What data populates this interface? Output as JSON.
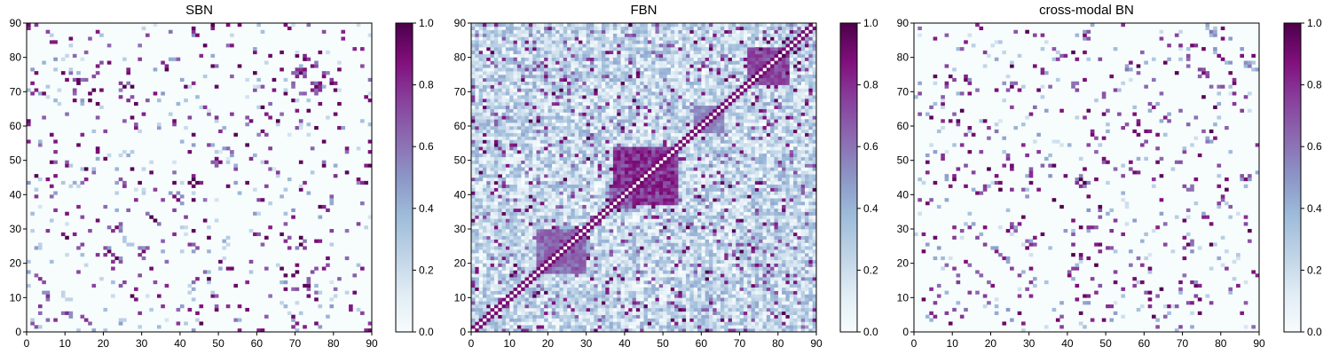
{
  "chart_data": [
    {
      "type": "heatmap",
      "title": "SBN",
      "xlim": [
        0,
        90
      ],
      "ylim": [
        0,
        90
      ],
      "xticks": [
        "0",
        "10",
        "20",
        "30",
        "40",
        "50",
        "60",
        "70",
        "80",
        "90"
      ],
      "yticks": [
        "0",
        "10",
        "20",
        "30",
        "40",
        "50",
        "60",
        "70",
        "80",
        "90"
      ],
      "colorbar": {
        "range": [
          0,
          1
        ],
        "ticks": [
          "0.0",
          "0.2",
          "0.4",
          "0.6",
          "0.8",
          "1.0"
        ]
      },
      "matrix_size": 90,
      "density": "sparse",
      "hotspots": [
        {
          "x": 44.5,
          "y": 43.5,
          "value": 1.0
        },
        {
          "x": 49.5,
          "y": 50.5,
          "value": 0.9
        },
        {
          "x": 25.5,
          "y": 71.5,
          "value": 1.0
        },
        {
          "x": 75.5,
          "y": 71.5,
          "value": 0.95
        },
        {
          "x": 79.5,
          "y": 72.5,
          "value": 0.95
        },
        {
          "x": 13.5,
          "y": 73.5,
          "value": 0.95
        },
        {
          "x": 21.5,
          "y": 23.5,
          "value": 0.9
        },
        {
          "x": 30.5,
          "y": 23.5,
          "value": 0.9
        },
        {
          "x": 74.5,
          "y": 77.5,
          "value": 0.9
        },
        {
          "x": 86.5,
          "y": 44.5,
          "value": 0.9
        },
        {
          "x": 3.5,
          "y": 15.5,
          "value": 0.8
        },
        {
          "x": 10.5,
          "y": 5.5,
          "value": 0.8
        },
        {
          "x": 39.5,
          "y": 38.5,
          "value": 0.9
        },
        {
          "x": 61.5,
          "y": 58.5,
          "value": 0.9
        }
      ]
    },
    {
      "type": "heatmap",
      "title": "FBN",
      "xlim": [
        0,
        90
      ],
      "ylim": [
        0,
        90
      ],
      "xticks": [
        "0",
        "10",
        "20",
        "30",
        "40",
        "50",
        "60",
        "70",
        "80",
        "90"
      ],
      "yticks": [
        "0",
        "10",
        "20",
        "30",
        "40",
        "50",
        "60",
        "70",
        "80",
        "90"
      ],
      "colorbar": {
        "range": [
          0,
          1
        ],
        "ticks": [
          "0.0",
          "0.2",
          "0.4",
          "0.6",
          "0.8",
          "1.0"
        ]
      },
      "matrix_size": 90,
      "density": "dense",
      "blocks": [
        {
          "x0": 42,
          "x1": 54,
          "y0": 37,
          "y1": 53,
          "value": 0.9
        },
        {
          "x0": 36,
          "x1": 43,
          "y0": 36,
          "y1": 43,
          "value": 0.75
        },
        {
          "x0": 72,
          "x1": 83,
          "y0": 72,
          "y1": 83,
          "value": 0.8
        },
        {
          "x0": 17,
          "x1": 30,
          "y0": 17,
          "y1": 29,
          "value": 0.7
        },
        {
          "x0": 58,
          "x1": 66,
          "y0": 58,
          "y1": 66,
          "value": 0.6
        }
      ]
    },
    {
      "type": "heatmap",
      "title": "cross-modal BN",
      "xlim": [
        0,
        90
      ],
      "ylim": [
        0,
        90
      ],
      "xticks": [
        "0",
        "10",
        "20",
        "30",
        "40",
        "50",
        "60",
        "70",
        "80",
        "90"
      ],
      "yticks": [
        "0",
        "10",
        "20",
        "30",
        "40",
        "50",
        "60",
        "70",
        "80",
        "90"
      ],
      "colorbar": {
        "range": [
          0,
          1
        ],
        "ticks": [
          "0.0",
          "0.2",
          "0.4",
          "0.6",
          "0.8",
          "1.0"
        ]
      },
      "matrix_size": 90,
      "density": "sparse",
      "hotspots": [
        {
          "x": 44.5,
          "y": 43.5,
          "value": 1.0
        },
        {
          "x": 49.5,
          "y": 50.5,
          "value": 0.9
        },
        {
          "x": 25.5,
          "y": 71.5,
          "value": 0.95
        },
        {
          "x": 13.5,
          "y": 73.5,
          "value": 0.95
        },
        {
          "x": 75.5,
          "y": 75.5,
          "value": 0.9
        },
        {
          "x": 54.5,
          "y": 89.5,
          "value": 0.8
        },
        {
          "x": 77.5,
          "y": 87.5,
          "value": 0.6
        },
        {
          "x": 86.5,
          "y": 44.5,
          "value": 0.9
        },
        {
          "x": 21.5,
          "y": 23.5,
          "value": 0.85
        },
        {
          "x": 60.5,
          "y": 58.5,
          "value": 0.9
        },
        {
          "x": 65.5,
          "y": 62.5,
          "value": 0.85
        },
        {
          "x": 30.5,
          "y": 25.5,
          "value": 0.8
        }
      ]
    }
  ]
}
